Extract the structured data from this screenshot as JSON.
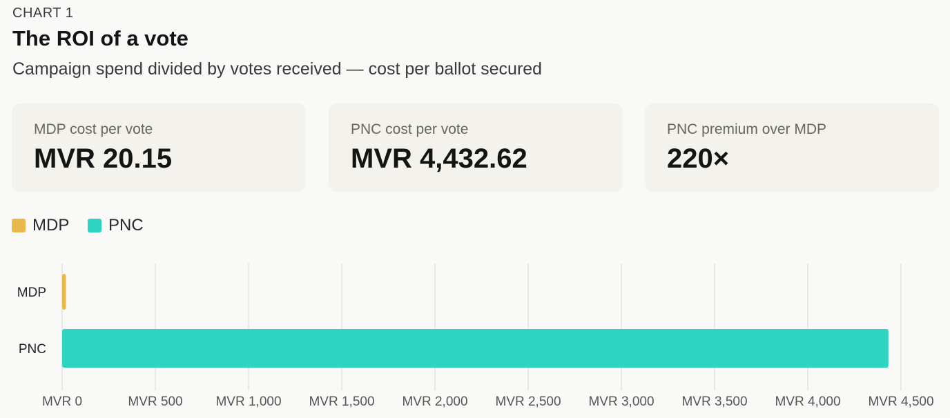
{
  "header": {
    "eyebrow": "CHART 1",
    "title": "The ROI of a vote",
    "subtitle": "Campaign spend divided by votes received — cost per ballot secured"
  },
  "cards": [
    {
      "label": "MDP cost per vote",
      "value": "MVR 20.15"
    },
    {
      "label": "PNC cost per vote",
      "value": "MVR 4,432.62"
    },
    {
      "label": "PNC premium over MDP",
      "value": "220×"
    }
  ],
  "legend": [
    {
      "label": "MDP",
      "color": "#e8b84a"
    },
    {
      "label": "PNC",
      "color": "#2dd4bf"
    }
  ],
  "chart_data": {
    "type": "bar",
    "orientation": "horizontal",
    "categories": [
      "MDP",
      "PNC"
    ],
    "values": [
      20.15,
      4432.62
    ],
    "colors": [
      "#e8b84a",
      "#2dd4bf"
    ],
    "xlim": [
      0,
      4500
    ],
    "xticks": [
      0,
      500,
      1000,
      1500,
      2000,
      2500,
      3000,
      3500,
      4000,
      4500
    ],
    "xtick_labels": [
      "MVR 0",
      "MVR 500",
      "MVR 1,000",
      "MVR 1,500",
      "MVR 2,000",
      "MVR 2,500",
      "MVR 3,000",
      "MVR 3,500",
      "MVR 4,000",
      "MVR 4,500"
    ],
    "grid": true,
    "title": "The ROI of a vote",
    "xlabel": "",
    "ylabel": ""
  }
}
